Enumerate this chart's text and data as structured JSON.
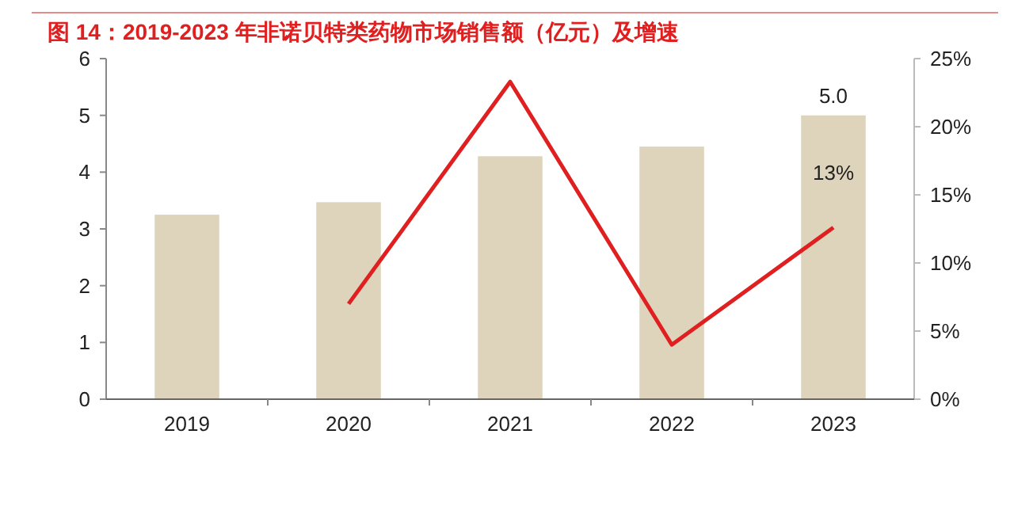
{
  "chart_data": {
    "type": "bar",
    "title": "图 14：2019-2023 年非诺贝特类药物市场销售额（亿元）及增速",
    "categories": [
      "2019",
      "2020",
      "2021",
      "2022",
      "2023"
    ],
    "series": [
      {
        "color": "#ded4bc",
        "values": [
          3.25,
          3.47,
          4.28,
          4.45,
          5.0
        ],
        "value_labels": [
          null,
          null,
          null,
          null,
          "5.0"
        ]
      },
      {
        "type": "line",
        "axis": "y2",
        "color": "#e02020",
        "values": [
          null,
          7,
          23.3,
          4,
          12.6
        ],
        "value_labels": [
          null,
          null,
          null,
          null,
          "13%"
        ]
      }
    ],
    "ylim": [
      0,
      6
    ],
    "yticks": [
      0,
      1,
      2,
      3,
      4,
      5,
      6
    ],
    "y2lim": [
      0,
      25
    ],
    "y2ticks": [
      {
        "value": 0,
        "label": "0%"
      },
      {
        "value": 5,
        "label": "5%"
      },
      {
        "value": 10,
        "label": "10%"
      },
      {
        "value": 15,
        "label": "15%"
      },
      {
        "value": 20,
        "label": "20%"
      },
      {
        "value": 25,
        "label": "25%"
      }
    ],
    "grid": false,
    "marker": "none",
    "line_style": "solid"
  }
}
